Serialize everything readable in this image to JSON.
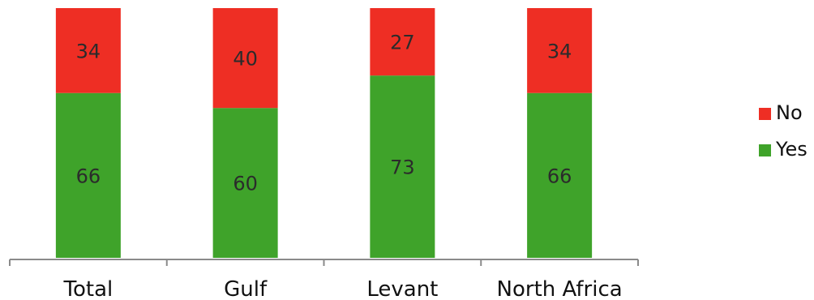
{
  "chart_data": {
    "type": "bar",
    "stacked": true,
    "categories": [
      "Total",
      "Gulf",
      "Levant",
      "North Africa"
    ],
    "series": [
      {
        "name": "Yes",
        "values": [
          66,
          60,
          73,
          66
        ],
        "color": "#3fa32a"
      },
      {
        "name": "No",
        "values": [
          34,
          40,
          27,
          34
        ],
        "color": "#ee2e24"
      }
    ],
    "ylim": [
      0,
      100
    ],
    "grid": false,
    "data_labels": true,
    "legend_position": "right",
    "legend_order": [
      "No",
      "Yes"
    ]
  }
}
